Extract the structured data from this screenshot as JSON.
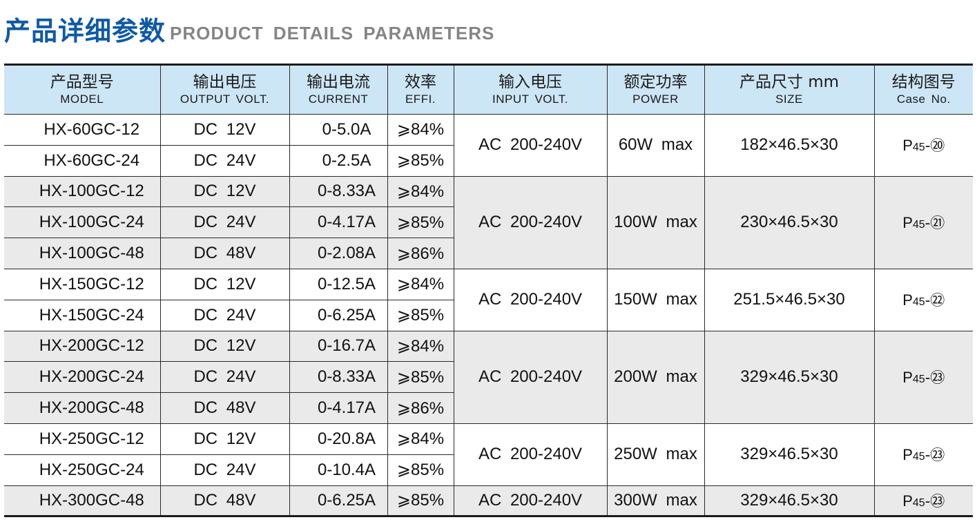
{
  "title": {
    "cn": "产品详细参数",
    "en": "PRODUCT DETAILS PARAMETERS"
  },
  "headers": [
    {
      "cn": "产品型号",
      "en": "MODEL"
    },
    {
      "cn": "输出电压",
      "en": "OUTPUT VOLT."
    },
    {
      "cn": "输出电流",
      "en": "CURRENT"
    },
    {
      "cn": "效率",
      "en": "EFFI."
    },
    {
      "cn": "输入电压",
      "en": "INPUT VOLT."
    },
    {
      "cn": "额定功率",
      "en": "POWER"
    },
    {
      "cn": "产品尺寸 mm",
      "en": "SIZE"
    },
    {
      "cn": "结构图号",
      "en": "Case No."
    }
  ],
  "groups": [
    {
      "input": "AC 200-240V",
      "power": "60W max",
      "size": "182×46.5×30",
      "case": {
        "prefix": "P",
        "sub": "45",
        "num": "-⑳"
      },
      "rows": [
        {
          "model": "HX-60GC-12",
          "volt": "DC 12V",
          "current": "0-5.0A",
          "effi": "⩾84%"
        },
        {
          "model": "HX-60GC-24",
          "volt": "DC 24V",
          "current": "0-2.5A",
          "effi": "⩾85%"
        }
      ]
    },
    {
      "input": "AC 200-240V",
      "power": "100W max",
      "size": "230×46.5×30",
      "case": {
        "prefix": "P",
        "sub": "45",
        "num": "-㉑"
      },
      "rows": [
        {
          "model": "HX-100GC-12",
          "volt": "DC 12V",
          "current": "0-8.33A",
          "effi": "⩾84%"
        },
        {
          "model": "HX-100GC-24",
          "volt": "DC 24V",
          "current": "0-4.17A",
          "effi": "⩾85%"
        },
        {
          "model": "HX-100GC-48",
          "volt": "DC 48V",
          "current": "0-2.08A",
          "effi": "⩾86%"
        }
      ]
    },
    {
      "input": "AC 200-240V",
      "power": "150W max",
      "size": "251.5×46.5×30",
      "case": {
        "prefix": "P",
        "sub": "45",
        "num": "-㉒"
      },
      "rows": [
        {
          "model": "HX-150GC-12",
          "volt": "DC 12V",
          "current": "0-12.5A",
          "effi": "⩾84%"
        },
        {
          "model": "HX-150GC-24",
          "volt": "DC 24V",
          "current": "0-6.25A",
          "effi": "⩾85%"
        }
      ]
    },
    {
      "input": "AC 200-240V",
      "power": "200W max",
      "size": "329×46.5×30",
      "case": {
        "prefix": "P",
        "sub": "45",
        "num": "-㉓"
      },
      "rows": [
        {
          "model": "HX-200GC-12",
          "volt": "DC 12V",
          "current": "0-16.7A",
          "effi": "⩾84%"
        },
        {
          "model": "HX-200GC-24",
          "volt": "DC 24V",
          "current": "0-8.33A",
          "effi": "⩾85%"
        },
        {
          "model": "HX-200GC-48",
          "volt": "DC 48V",
          "current": "0-4.17A",
          "effi": "⩾86%"
        }
      ]
    },
    {
      "input": "AC 200-240V",
      "power": "250W max",
      "size": "329×46.5×30",
      "case": {
        "prefix": "P",
        "sub": "45",
        "num": "-㉓"
      },
      "rows": [
        {
          "model": "HX-250GC-12",
          "volt": "DC 12V",
          "current": "0-20.8A",
          "effi": "⩾84%"
        },
        {
          "model": "HX-250GC-24",
          "volt": "DC 24V",
          "current": "0-10.4A",
          "effi": "⩾85%"
        }
      ]
    },
    {
      "input": "AC 200-240V",
      "power": "300W max",
      "size": "329×46.5×30",
      "case": {
        "prefix": "P",
        "sub": "45",
        "num": "-㉓"
      },
      "rows": [
        {
          "model": "HX-300GC-48",
          "volt": "DC 48V",
          "current": "0-6.25A",
          "effi": "⩾85%"
        }
      ]
    }
  ]
}
